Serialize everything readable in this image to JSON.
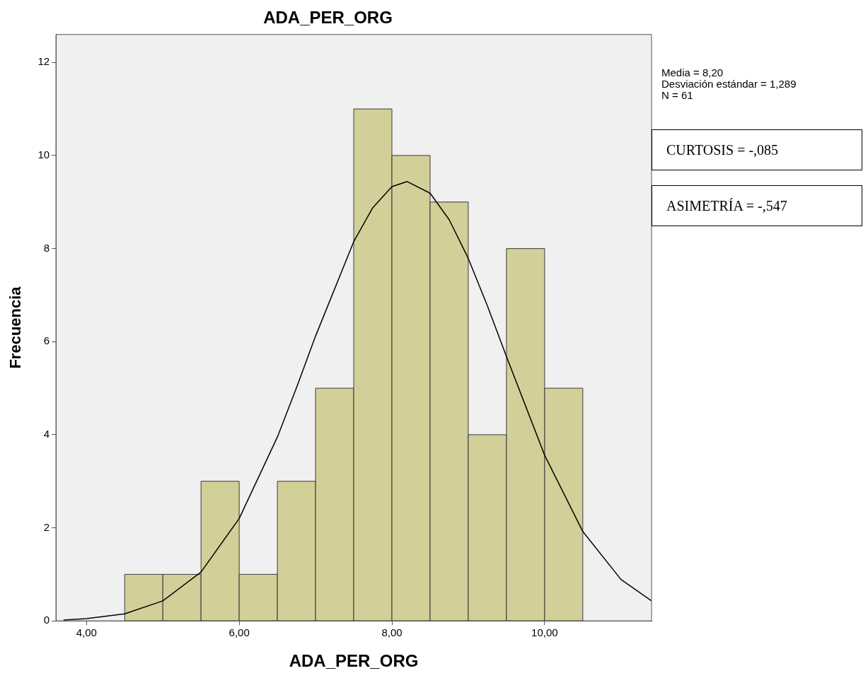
{
  "chart_data": {
    "type": "histogram",
    "title": "ADA_PER_ORG",
    "xlabel": "ADA_PER_ORG",
    "ylabel": "Frecuencia",
    "bins": [
      4.5,
      5,
      5.5,
      6,
      6.5,
      7,
      7.5,
      8,
      8.5,
      9,
      9.5,
      10,
      10.5
    ],
    "values": [
      1,
      1,
      3,
      1,
      3,
      5,
      11,
      10,
      9,
      4,
      8,
      5
    ],
    "color": "#d3cf98",
    "series": [
      {
        "type": "line",
        "color": "#000000",
        "x": [
          3.7,
          4,
          4.5,
          5,
          5.5,
          6,
          6.5,
          6.75,
          7,
          7.5,
          7.75,
          8,
          8.2,
          8.5,
          8.75,
          9,
          9.25,
          9.5,
          10,
          10.5,
          11,
          11.4
        ],
        "values": [
          0.02,
          0.05,
          0.15,
          0.43,
          1.05,
          2.2,
          3.95,
          5.01,
          6.12,
          8.15,
          8.88,
          9.33,
          9.44,
          9.19,
          8.62,
          7.79,
          6.77,
          5.68,
          3.56,
          1.92,
          0.89,
          0.43
        ]
      }
    ],
    "xlim": [
      3.6,
      11.4
    ],
    "xticks": [
      {
        "value": 4,
        "label": "4,00"
      },
      {
        "value": 6,
        "label": "6,00"
      },
      {
        "value": 8,
        "label": "8,00"
      },
      {
        "value": 10,
        "label": "10,00"
      }
    ],
    "ylim": [
      0,
      12.6
    ],
    "yticks": [
      0,
      2,
      4,
      6,
      8,
      10,
      12
    ],
    "grid": false,
    "legend": false,
    "annotations": [
      "Media = 8,20",
      "Desviación estándar = 1,289",
      "N = 61",
      "CURTOSIS = -,085",
      "ASIMETRÍA = -,547"
    ]
  }
}
